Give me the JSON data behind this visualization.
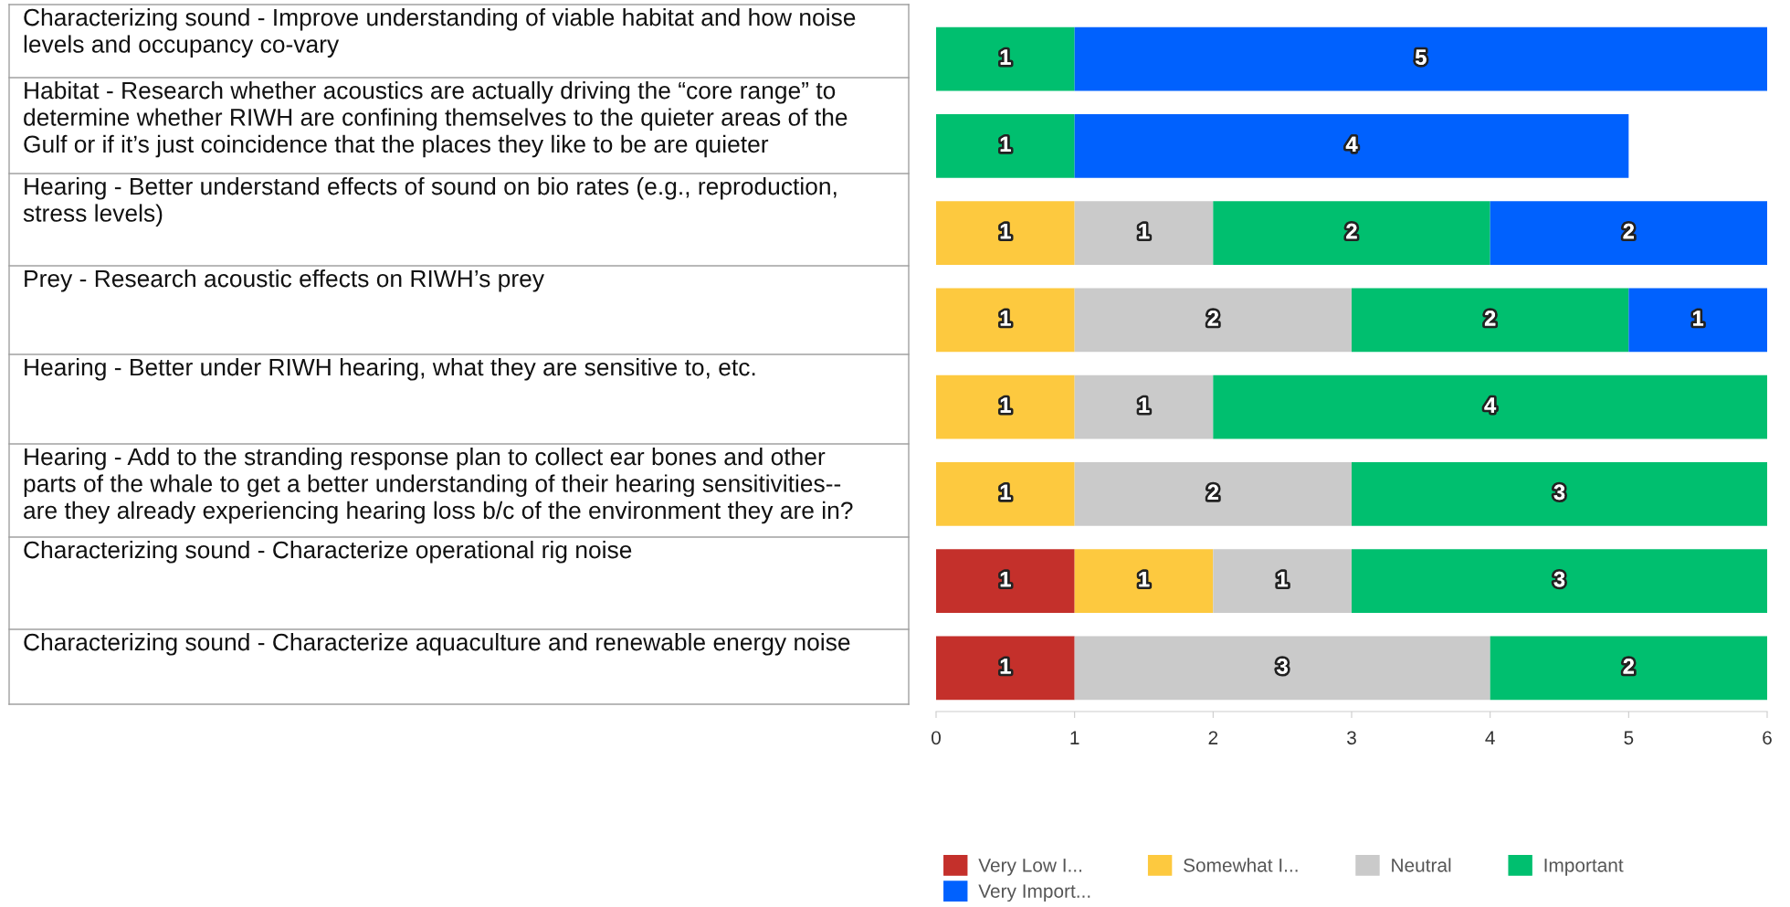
{
  "chart_data": {
    "type": "bar",
    "orientation": "horizontal",
    "stacked": true,
    "data_labels": true,
    "legend": "bottom left",
    "grid": false,
    "categories": [
      "Characterizing sound - Improve understanding of viable habitat and how noise\nlevels and occupancy co-vary",
      "Habitat - Research whether acoustics are actually driving the “core range” to\ndetermine whether RIWH are confining themselves to the quieter areas of the\nGulf or if it’s just coincidence that the places they like to be are quieter",
      "Hearing - Better understand effects of sound on bio rates (e.g., reproduction,\nstress levels)",
      "Prey - Research acoustic effects on RIWH’s prey",
      "Hearing - Better under RIWH hearing, what they are sensitive to, etc.",
      "Hearing - Add to the stranding response plan to collect ear bones and other\nparts of the whale to get a better understanding of their hearing sensitivities--\nare they already experiencing hearing loss b/c of the environment they are in?",
      "Characterizing sound - Characterize operational rig noise",
      "Characterizing sound - Characterize aquaculture and renewable energy noise"
    ],
    "series": [
      {
        "name": "Very Low I...",
        "color": "#c4302b",
        "values": [
          null,
          null,
          null,
          null,
          null,
          null,
          1,
          1
        ]
      },
      {
        "name": "Somewhat I...",
        "color": "#fdc93f",
        "values": [
          null,
          null,
          1,
          1,
          1,
          1,
          1,
          null
        ]
      },
      {
        "name": "Neutral",
        "color": "#cacaca",
        "values": [
          null,
          null,
          1,
          2,
          1,
          2,
          1,
          3
        ]
      },
      {
        "name": "Important",
        "color": "#00bf6f",
        "values": [
          1,
          1,
          2,
          2,
          4,
          3,
          3,
          2
        ]
      },
      {
        "name": "Very Import...",
        "color": "#0061fe",
        "values": [
          5,
          4,
          2,
          1,
          null,
          null,
          null,
          null
        ]
      }
    ],
    "xlim": [
      0,
      6
    ],
    "xticks": [
      0,
      1,
      2,
      3,
      4,
      5,
      6
    ]
  }
}
